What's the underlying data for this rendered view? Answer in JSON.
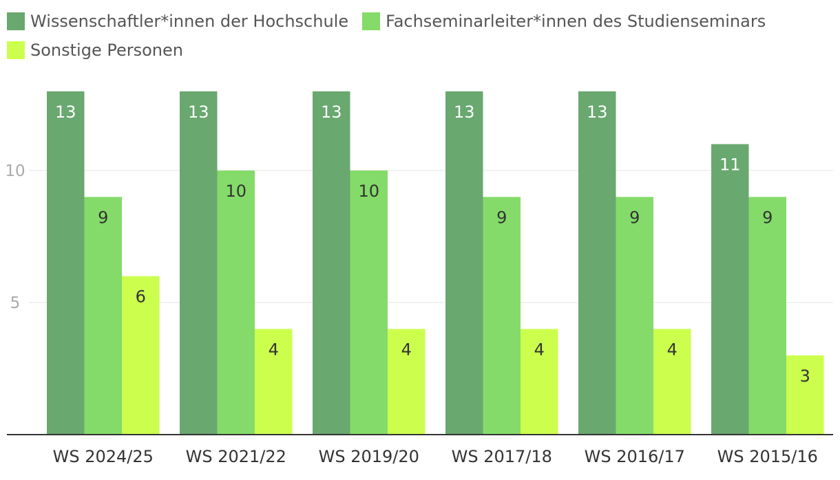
{
  "chart_data": {
    "type": "bar",
    "categories": [
      "WS 2024/25",
      "WS 2021/22",
      "WS 2019/20",
      "WS 2017/18",
      "WS 2016/17",
      "WS 2015/16"
    ],
    "series": [
      {
        "name": "Wissenschaftler*innen der Hochschule",
        "color": "#69a86f",
        "label_color": "#ffffff",
        "values": [
          13,
          13,
          13,
          13,
          13,
          11
        ]
      },
      {
        "name": "Fachseminarleiter*innen des Studienseminars",
        "color": "#84db69",
        "label_color": "#333333",
        "values": [
          9,
          10,
          10,
          9,
          9,
          9
        ]
      },
      {
        "name": "Sonstige Personen",
        "color": "#ccff4d",
        "label_color": "#333333",
        "values": [
          6,
          4,
          4,
          4,
          4,
          3
        ]
      }
    ],
    "yticks": [
      5,
      10
    ],
    "ylim": [
      0,
      13
    ],
    "grid": true,
    "legend_position": "top-left",
    "title": "",
    "xlabel": "",
    "ylabel": ""
  }
}
